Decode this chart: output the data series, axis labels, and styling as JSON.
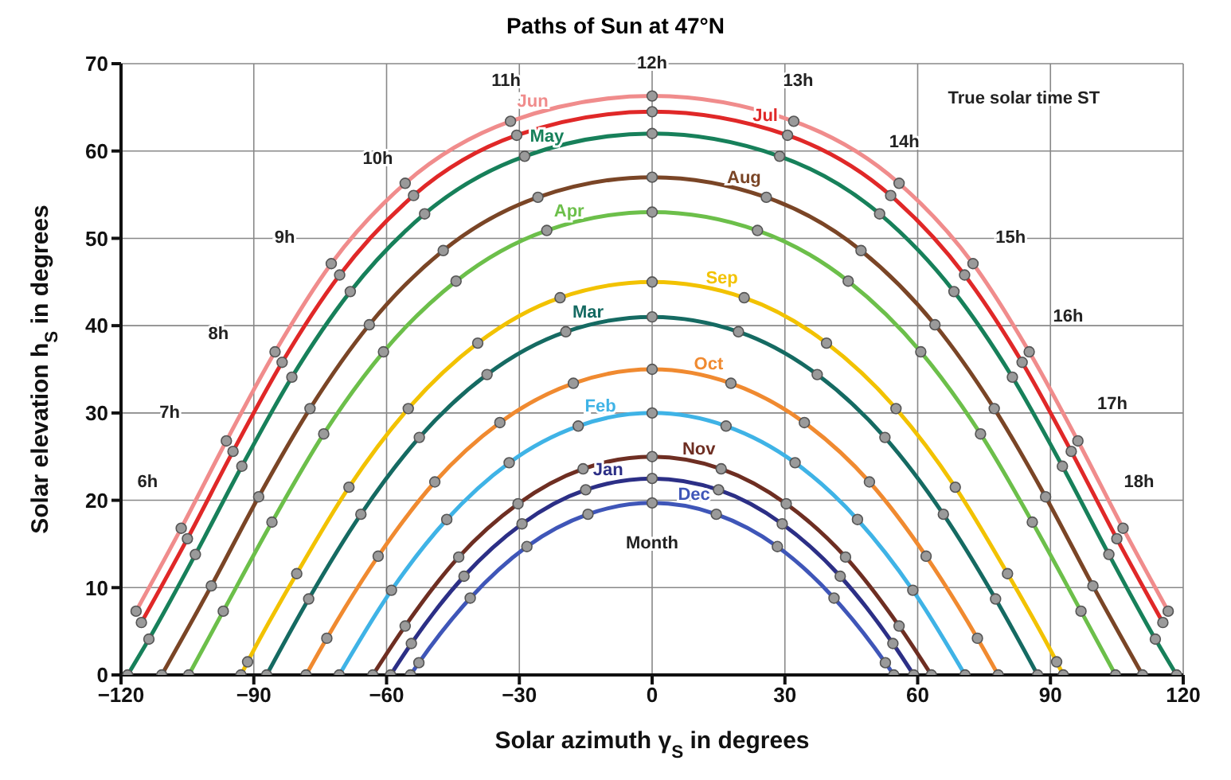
{
  "chart_data": {
    "type": "line",
    "title": "Paths of Sun at 47°N",
    "xlabel": "Solar azimuth γ$_{S}$ in degrees",
    "ylabel": "Solar elevation h$_{S}$ in degrees",
    "xlim": [
      -120,
      120
    ],
    "xticks": [
      -120,
      -90,
      -60,
      -30,
      0,
      30,
      60,
      90,
      120
    ],
    "ylim": [
      0,
      70
    ],
    "yticks": [
      0,
      10,
      20,
      30,
      40,
      50,
      60,
      70
    ],
    "grid": true,
    "marker": "circle",
    "line_style": "solid",
    "series": [
      {
        "name": "Jun",
        "color": "#f08c8c",
        "x": [
          -116.6,
          -106.4,
          -96.2,
          -85.2,
          -72.5,
          -55.8,
          -32.0,
          0,
          32.0,
          55.8,
          72.5,
          85.2,
          96.2,
          106.4,
          116.6
        ],
        "values": [
          7.3,
          16.8,
          26.8,
          37.0,
          47.1,
          56.3,
          63.4,
          66.3,
          63.4,
          56.3,
          47.1,
          37.0,
          26.8,
          16.8,
          7.3
        ]
      },
      {
        "name": "Jul",
        "color": "#e02828",
        "x": [
          -115.4,
          -105.0,
          -94.7,
          -83.6,
          -70.6,
          -53.9,
          -30.6,
          0,
          30.6,
          53.9,
          70.6,
          83.6,
          94.7,
          105.0,
          115.4
        ],
        "values": [
          6.0,
          15.6,
          25.6,
          35.8,
          45.8,
          54.9,
          61.8,
          64.5,
          61.8,
          54.9,
          45.8,
          35.8,
          25.6,
          15.6,
          6.0
        ]
      },
      {
        "name": "May",
        "color": "#17805a",
        "x": [
          -118.5,
          -113.7,
          -103.2,
          -92.7,
          -81.4,
          -68.2,
          -51.4,
          -28.8,
          0,
          28.8,
          51.4,
          68.2,
          81.4,
          92.7,
          103.2,
          113.7,
          118.5
        ],
        "values": [
          0,
          4.1,
          13.8,
          23.9,
          34.1,
          43.9,
          52.8,
          59.4,
          62.0,
          59.4,
          52.8,
          43.9,
          34.1,
          23.9,
          13.8,
          4.1,
          0
        ]
      },
      {
        "name": "Aug",
        "color": "#7a4526",
        "x": [
          -110.8,
          -99.6,
          -88.9,
          -77.3,
          -63.9,
          -47.2,
          -25.8,
          0,
          25.8,
          47.2,
          63.9,
          77.3,
          88.9,
          99.6,
          110.8
        ],
        "values": [
          0,
          10.2,
          20.4,
          30.5,
          40.1,
          48.6,
          54.7,
          57.0,
          54.7,
          48.6,
          40.1,
          30.5,
          20.4,
          10.2,
          0
        ]
      },
      {
        "name": "Apr",
        "color": "#6cbf4a",
        "x": [
          -104.7,
          -96.9,
          -85.9,
          -74.2,
          -60.7,
          -44.3,
          -23.8,
          0,
          23.8,
          44.3,
          60.7,
          74.2,
          85.9,
          96.9,
          104.7
        ],
        "values": [
          0,
          7.3,
          17.5,
          27.6,
          37.0,
          45.1,
          50.9,
          53.0,
          50.9,
          45.1,
          37.0,
          27.6,
          17.5,
          7.3,
          0
        ]
      },
      {
        "name": "Sep",
        "color": "#f2c200",
        "x": [
          -92.9,
          -91.4,
          -80.3,
          -68.5,
          -55.1,
          -39.4,
          -20.8,
          0,
          20.8,
          39.4,
          55.1,
          68.5,
          80.3,
          91.4,
          92.9
        ],
        "values": [
          0,
          1.5,
          11.6,
          21.5,
          30.5,
          38.0,
          43.2,
          45.0,
          43.2,
          38.0,
          30.5,
          21.5,
          11.6,
          1.5,
          0
        ]
      },
      {
        "name": "Mar",
        "color": "#156a62",
        "x": [
          -87.1,
          -77.6,
          -65.8,
          -52.6,
          -37.3,
          -19.5,
          0,
          19.5,
          37.3,
          52.6,
          65.8,
          77.6,
          87.1
        ],
        "values": [
          0,
          8.7,
          18.4,
          27.2,
          34.4,
          39.3,
          41.0,
          39.3,
          34.4,
          27.2,
          18.4,
          8.7,
          0
        ]
      },
      {
        "name": "Oct",
        "color": "#f08a30",
        "x": [
          -78.2,
          -73.5,
          -61.9,
          -49.1,
          -34.4,
          -17.8,
          0,
          17.8,
          34.4,
          49.1,
          61.9,
          73.5,
          78.2
        ],
        "values": [
          0,
          4.2,
          13.6,
          22.1,
          28.9,
          33.4,
          35.0,
          33.4,
          28.9,
          22.1,
          13.6,
          4.2,
          0
        ]
      },
      {
        "name": "Feb",
        "color": "#3fb3e6",
        "x": [
          -70.7,
          -58.9,
          -46.4,
          -32.3,
          -16.7,
          0,
          16.7,
          32.3,
          46.4,
          58.9,
          70.7
        ],
        "values": [
          0,
          9.7,
          17.8,
          24.3,
          28.5,
          30.0,
          28.5,
          24.3,
          17.8,
          9.7,
          0
        ]
      },
      {
        "name": "Nov",
        "color": "#6e2e22",
        "x": [
          -63.1,
          -55.8,
          -43.7,
          -30.3,
          -15.6,
          0,
          15.6,
          30.3,
          43.7,
          55.8,
          63.1
        ],
        "values": [
          0,
          5.6,
          13.5,
          19.6,
          23.6,
          25.0,
          23.6,
          19.6,
          13.5,
          5.6,
          0
        ]
      },
      {
        "name": "Jan",
        "color": "#2c2f86",
        "x": [
          -59.1,
          -54.4,
          -42.5,
          -29.4,
          -15.0,
          0,
          15.0,
          29.4,
          42.5,
          54.4,
          59.1
        ],
        "values": [
          0,
          3.6,
          11.3,
          17.3,
          21.2,
          22.5,
          21.2,
          17.3,
          11.3,
          3.6,
          0
        ]
      },
      {
        "name": "Dec",
        "color": "#3f56b8",
        "x": [
          -54.6,
          -52.7,
          -41.1,
          -28.3,
          -14.5,
          0,
          14.5,
          28.3,
          41.1,
          52.7,
          54.6
        ],
        "values": [
          0,
          1.4,
          8.8,
          14.7,
          18.4,
          19.7,
          18.4,
          14.7,
          8.8,
          1.4,
          0
        ]
      }
    ],
    "annotations": [
      "6h",
      "7h",
      "8h",
      "9h",
      "10h",
      "11h",
      "12h",
      "13h",
      "14h",
      "15h",
      "16h",
      "17h",
      "18h",
      "True solar time ST",
      "Month"
    ]
  }
}
